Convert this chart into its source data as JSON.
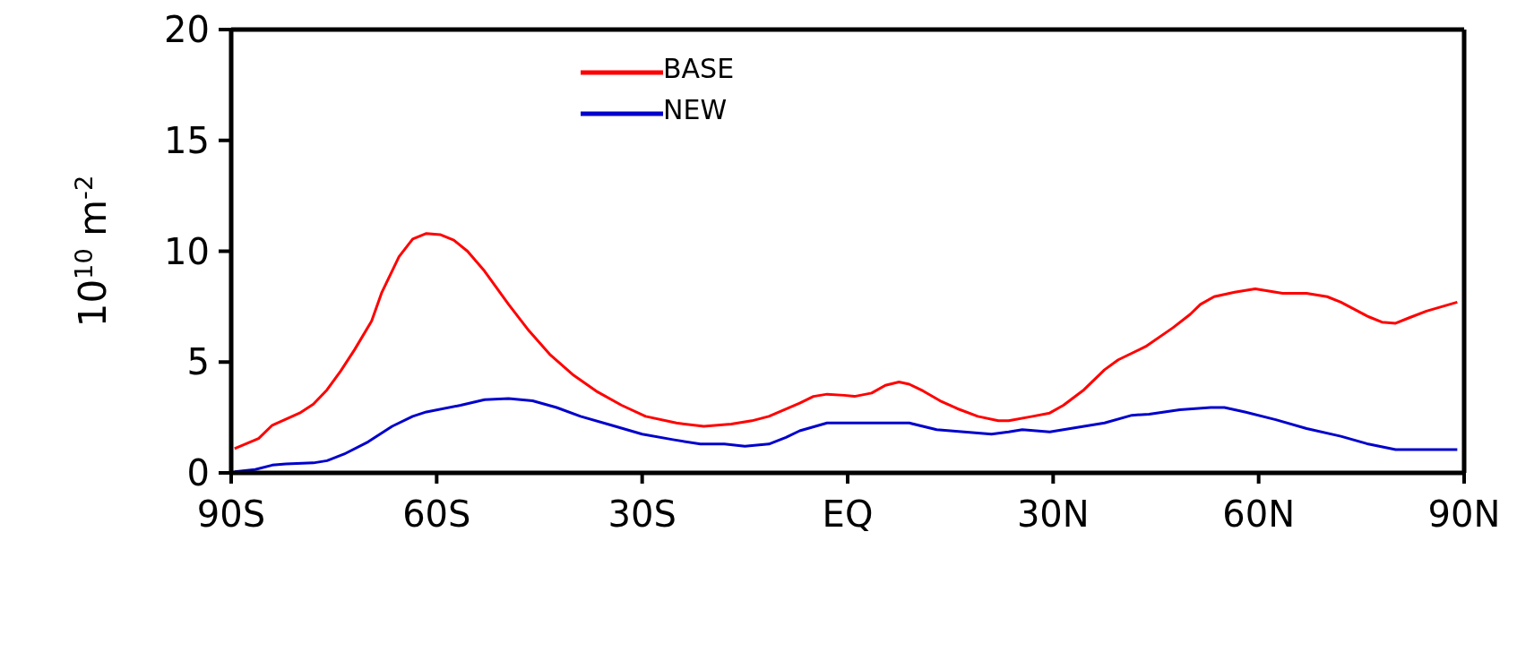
{
  "chart_data": {
    "type": "line",
    "ylabel": "10$^{10}$ m$^{-2}$",
    "xlim": [
      -90,
      90
    ],
    "xticks": [
      {
        "value": -90,
        "label": "90S"
      },
      {
        "value": -60,
        "label": "60S"
      },
      {
        "value": -30,
        "label": "30S"
      },
      {
        "value": 0,
        "label": "EQ"
      },
      {
        "value": 30,
        "label": "30N"
      },
      {
        "value": 60,
        "label": "60N"
      },
      {
        "value": 90,
        "label": "90N"
      }
    ],
    "ylim": [
      0,
      20
    ],
    "yticks": [
      0,
      5,
      10,
      15,
      20
    ],
    "grid": false,
    "legend": "top left",
    "marker": "none",
    "line_style": "solid",
    "series": [
      {
        "name": "BASE",
        "color": "#ff0000",
        "x": [
          -89.5,
          -86,
          -84,
          -80,
          -78,
          -76,
          -74,
          -72,
          -69.5,
          -68,
          -65.5,
          -63.5,
          -61.5,
          -59.5,
          -57.5,
          -55.5,
          -53,
          -49.5,
          -46.5,
          -43.5,
          -40,
          -36.5,
          -33,
          -29.5,
          -25,
          -21,
          -17,
          -14,
          -11.5,
          -7,
          -5,
          -3,
          -0.5,
          1,
          3.5,
          5.5,
          7.5,
          9,
          11,
          13.5,
          16,
          19,
          22,
          23.5,
          27,
          29.5,
          31.5,
          34.5,
          37.5,
          39.5,
          43.5,
          47.5,
          50,
          51.5,
          53.5,
          56.5,
          59.5,
          63.5,
          67,
          70,
          72,
          76,
          78,
          80,
          82,
          84.5,
          89
        ],
        "values": [
          1.1,
          1.55,
          2.15,
          2.7,
          3.1,
          3.75,
          4.6,
          5.55,
          6.85,
          8.15,
          9.75,
          10.55,
          10.8,
          10.75,
          10.5,
          10.0,
          9.1,
          7.6,
          6.4,
          5.35,
          4.4,
          3.65,
          3.05,
          2.55,
          2.25,
          2.1,
          2.2,
          2.35,
          2.55,
          3.15,
          3.45,
          3.55,
          3.5,
          3.45,
          3.6,
          3.95,
          4.1,
          4.0,
          3.7,
          3.25,
          2.9,
          2.55,
          2.35,
          2.35,
          2.55,
          2.7,
          3.05,
          3.75,
          4.65,
          5.1,
          5.7,
          6.55,
          7.15,
          7.6,
          7.95,
          8.15,
          8.3,
          8.1,
          8.1,
          7.95,
          7.7,
          7.05,
          6.8,
          6.75,
          7.0,
          7.3,
          7.7
        ]
      },
      {
        "name": "NEW",
        "color": "#0000cc",
        "x": [
          -89.5,
          -86.5,
          -84,
          -82,
          -78,
          -76,
          -73.5,
          -70,
          -66.5,
          -63.5,
          -61.5,
          -56.5,
          -53,
          -49.5,
          -46,
          -42.5,
          -39,
          -34.5,
          -30,
          -25.5,
          -21.5,
          -18,
          -15,
          -11.5,
          -9,
          -7,
          -3,
          0,
          3.5,
          7.5,
          9,
          13,
          17,
          21,
          23.5,
          25.5,
          29.5,
          33.5,
          37.5,
          41.5,
          44,
          48.5,
          53,
          55,
          58,
          62.5,
          67,
          72,
          76,
          80,
          84.5,
          89
        ],
        "values": [
          0.05,
          0.15,
          0.35,
          0.4,
          0.45,
          0.55,
          0.85,
          1.4,
          2.1,
          2.55,
          2.75,
          3.05,
          3.3,
          3.35,
          3.25,
          2.95,
          2.55,
          2.15,
          1.75,
          1.5,
          1.3,
          1.3,
          1.2,
          1.3,
          1.6,
          1.9,
          2.25,
          2.25,
          2.25,
          2.25,
          2.25,
          1.95,
          1.85,
          1.75,
          1.85,
          1.95,
          1.85,
          2.05,
          2.25,
          2.6,
          2.65,
          2.85,
          2.95,
          2.95,
          2.75,
          2.4,
          2.0,
          1.65,
          1.3,
          1.05,
          1.05,
          1.05
        ]
      }
    ]
  }
}
